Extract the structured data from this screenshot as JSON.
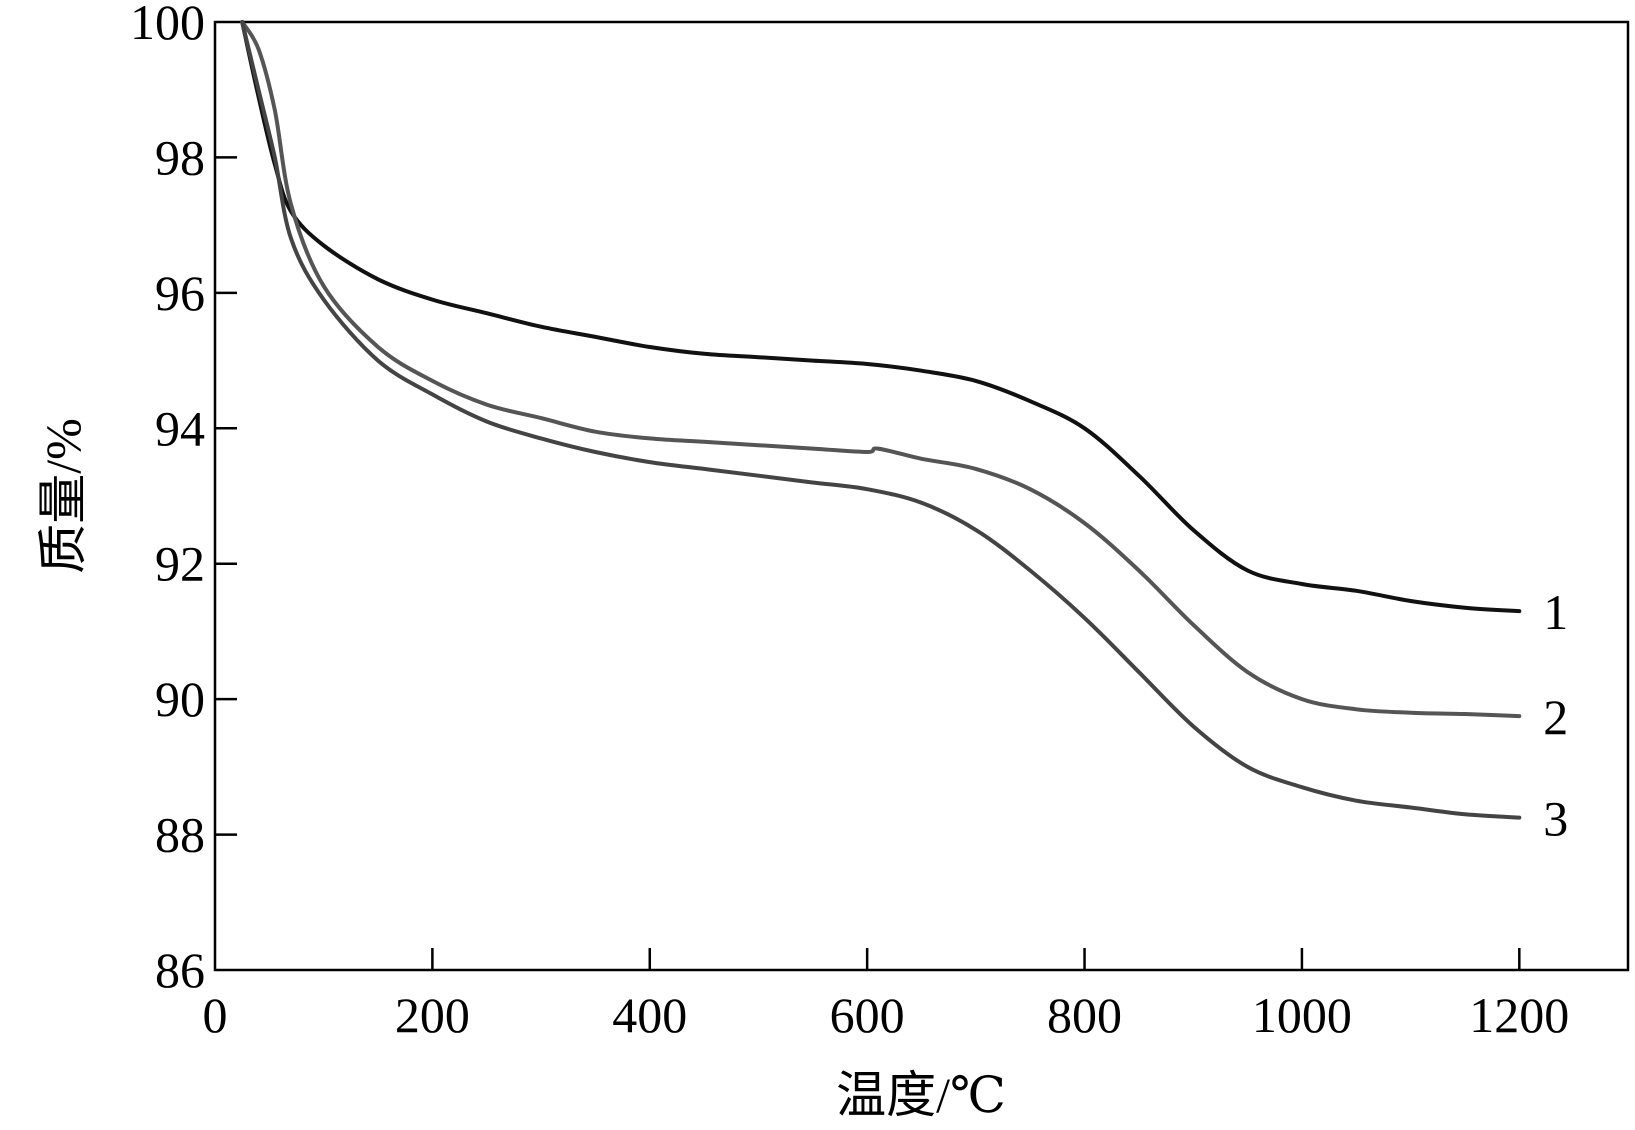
{
  "chart_data": {
    "type": "line",
    "xlabel": "温度/℃",
    "ylabel": "质量/%",
    "xlim": [
      0,
      1300
    ],
    "ylim": [
      86,
      100
    ],
    "xticks": [
      0,
      200,
      400,
      600,
      800,
      1000,
      1200
    ],
    "yticks": [
      86,
      88,
      90,
      92,
      94,
      96,
      98,
      100
    ],
    "xtick_labels": [
      "0",
      "200",
      "400",
      "600",
      "800",
      "1000",
      "1200"
    ],
    "ytick_labels": [
      "86",
      "88",
      "90",
      "92",
      "94",
      "96",
      "98",
      "100"
    ],
    "grid": false,
    "series": [
      {
        "name": "1",
        "color": "#111111",
        "x": [
          25,
          40,
          55,
          70,
          100,
          150,
          200,
          250,
          300,
          350,
          400,
          450,
          500,
          550,
          600,
          650,
          700,
          750,
          800,
          850,
          900,
          950,
          1000,
          1050,
          1100,
          1150,
          1200
        ],
        "y": [
          100,
          98.9,
          97.9,
          97.2,
          96.7,
          96.2,
          95.9,
          95.7,
          95.5,
          95.35,
          95.2,
          95.1,
          95.05,
          95.0,
          94.95,
          94.85,
          94.7,
          94.4,
          94.0,
          93.3,
          92.5,
          91.9,
          91.7,
          91.6,
          91.45,
          91.35,
          91.3
        ]
      },
      {
        "name": "2",
        "color": "#555555",
        "x": [
          25,
          40,
          55,
          70,
          100,
          150,
          200,
          250,
          300,
          350,
          400,
          450,
          500,
          550,
          600,
          610,
          650,
          700,
          750,
          800,
          850,
          900,
          950,
          1000,
          1050,
          1100,
          1150,
          1200
        ],
        "y": [
          100,
          99.6,
          98.7,
          97.3,
          96.1,
          95.2,
          94.7,
          94.35,
          94.15,
          93.95,
          93.85,
          93.8,
          93.75,
          93.7,
          93.65,
          93.7,
          93.55,
          93.4,
          93.1,
          92.6,
          91.9,
          91.1,
          90.4,
          90.0,
          89.85,
          89.8,
          89.78,
          89.75
        ]
      },
      {
        "name": "3",
        "color": "#444444",
        "x": [
          25,
          40,
          55,
          70,
          100,
          150,
          200,
          250,
          300,
          350,
          400,
          450,
          500,
          550,
          600,
          650,
          700,
          750,
          800,
          850,
          900,
          950,
          1000,
          1050,
          1100,
          1150,
          1200
        ],
        "y": [
          100,
          99.0,
          98.0,
          96.8,
          95.9,
          95.0,
          94.5,
          94.1,
          93.85,
          93.65,
          93.5,
          93.4,
          93.3,
          93.2,
          93.1,
          92.9,
          92.5,
          91.9,
          91.2,
          90.4,
          89.6,
          89.0,
          88.7,
          88.5,
          88.4,
          88.3,
          88.25
        ]
      }
    ]
  }
}
